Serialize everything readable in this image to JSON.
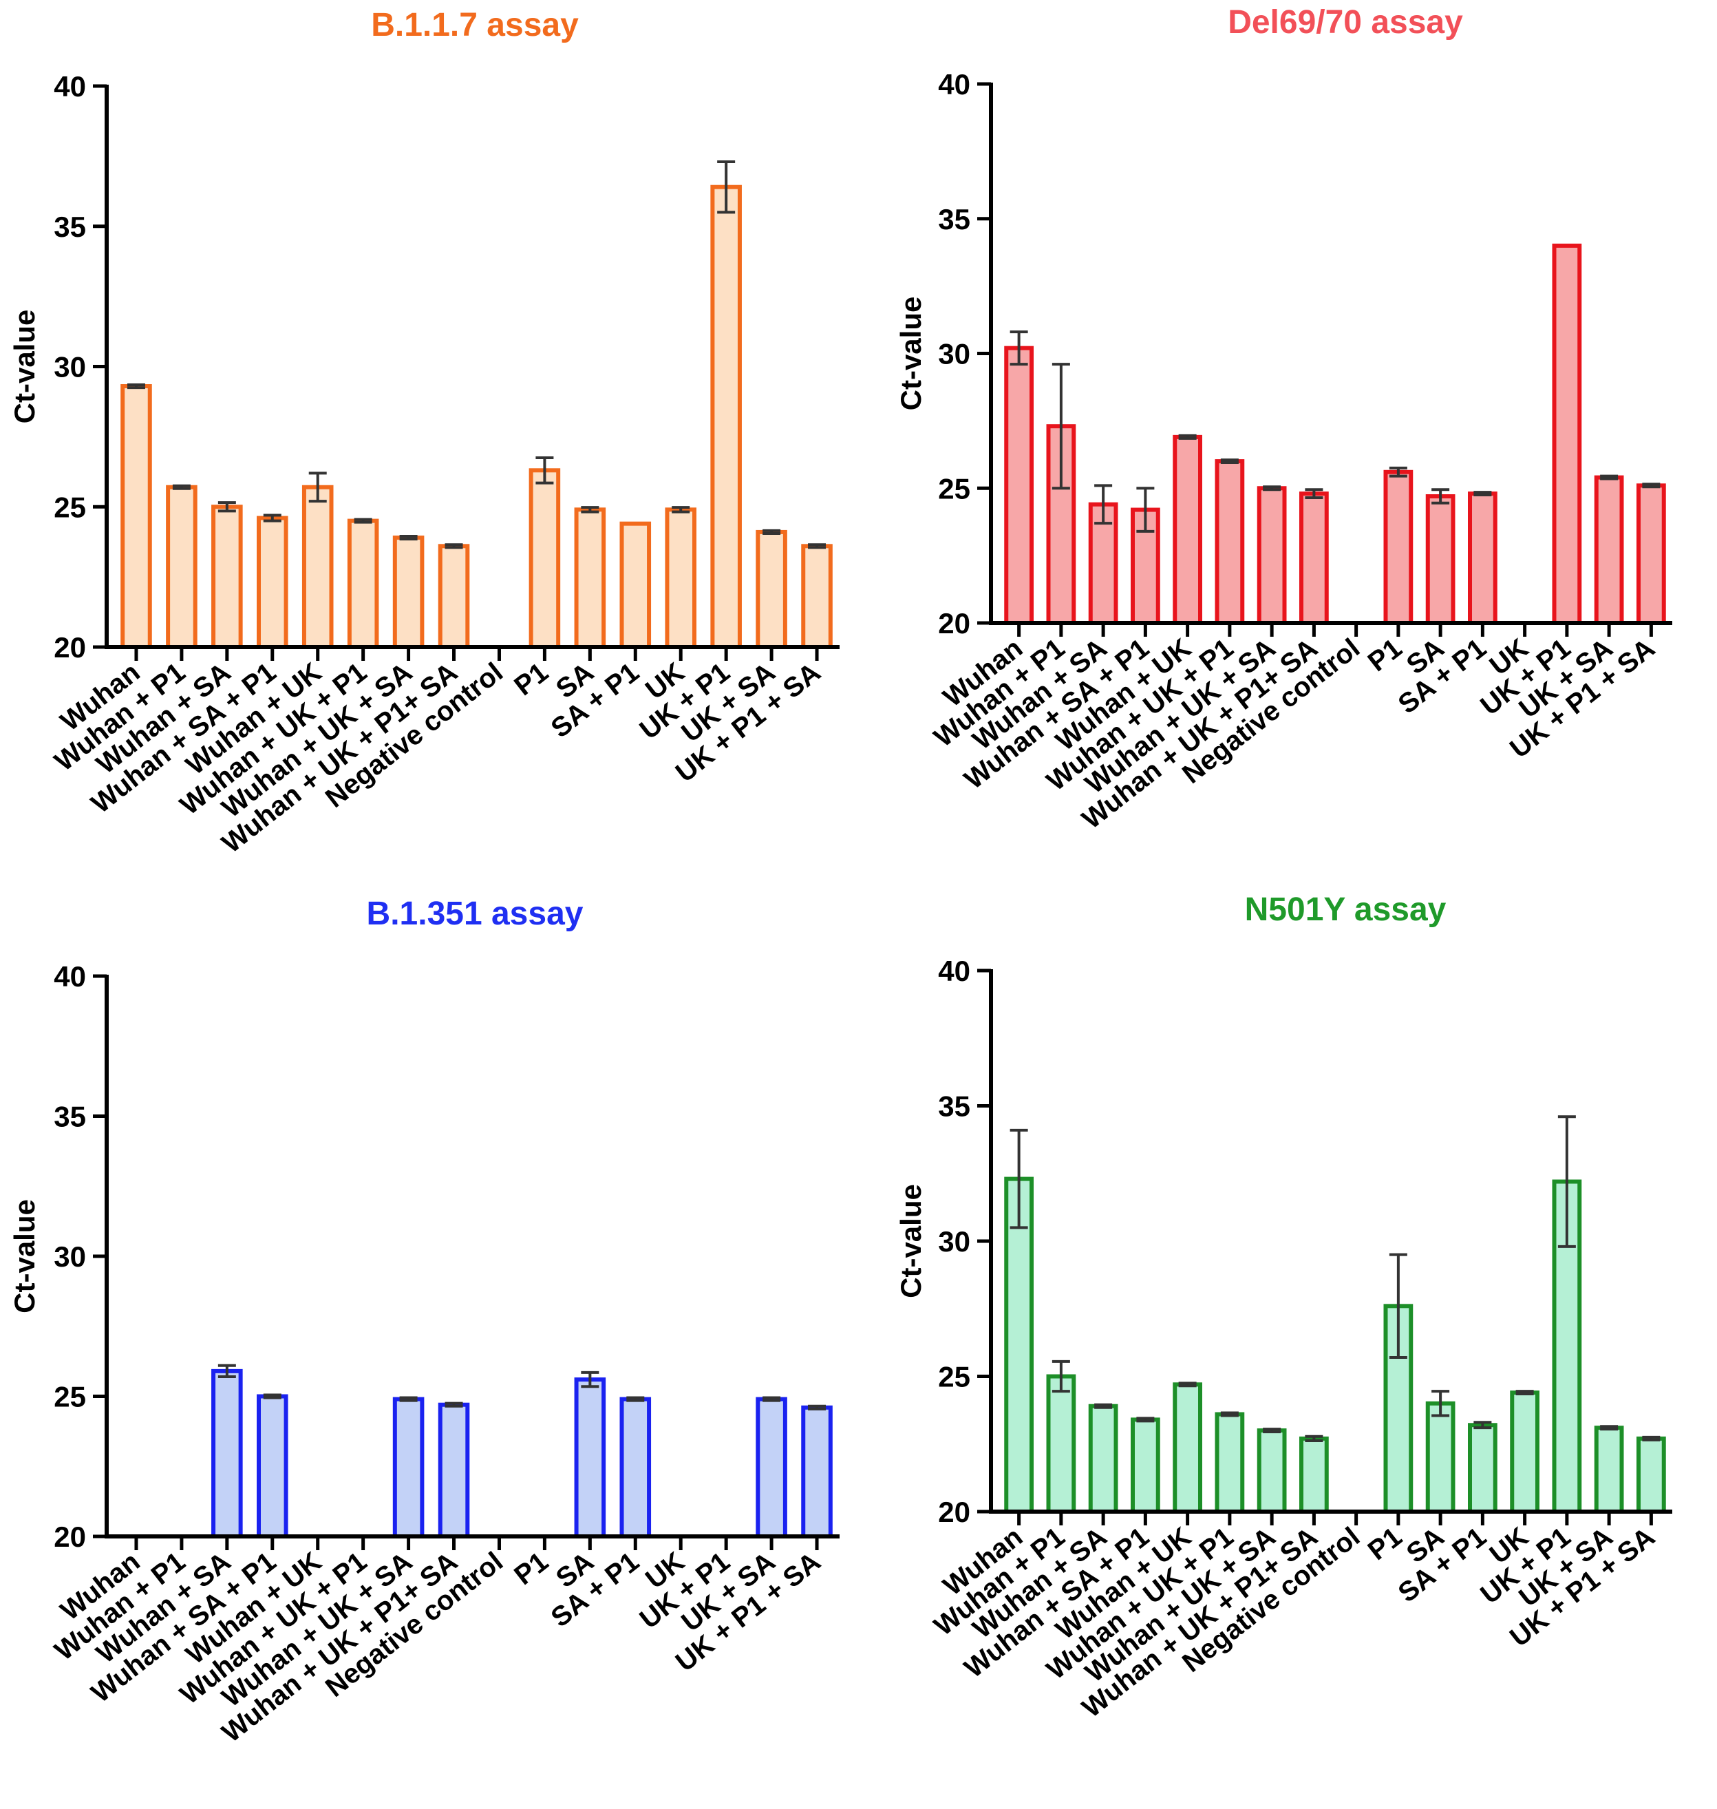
{
  "chart_data": [
    {
      "type": "bar",
      "title": "B.1.1.7 assay",
      "title_color": "#f26b1d",
      "bar_stroke": "#f26b1d",
      "bar_fill": "#fde0c5",
      "xlabel": "",
      "ylabel": "Ct-value",
      "ylim": [
        20,
        40
      ],
      "yticks": [
        "20",
        "25",
        "30",
        "35",
        "40"
      ],
      "grid": false,
      "categories": [
        "Wuhan",
        "Wuhan + P1",
        "Wuhan + SA",
        "Wuhan + SA + P1",
        "Wuhan + UK",
        "Wuhan + UK + P1",
        "Wuhan + UK + SA",
        "Wuhan + UK + P1+ SA",
        "Negative control",
        "P1",
        "SA",
        "SA + P1",
        "UK",
        "UK + P1",
        "UK + SA",
        "UK + P1 + SA"
      ],
      "values": [
        29.3,
        25.7,
        25.0,
        24.6,
        25.7,
        24.5,
        23.9,
        23.6,
        null,
        26.3,
        24.9,
        24.4,
        24.9,
        36.4,
        24.1,
        23.6
      ],
      "errors": [
        0.05,
        0.05,
        0.15,
        0.1,
        0.5,
        0.05,
        0.05,
        0.05,
        null,
        0.45,
        0.08,
        0,
        0.08,
        0.9,
        0.05,
        0.05
      ]
    },
    {
      "type": "bar",
      "title": "Del69/70 assay",
      "title_color": "#f25058",
      "bar_stroke": "#e8141c",
      "bar_fill": "#f7a7a8",
      "xlabel": "",
      "ylabel": "Ct-value",
      "ylim": [
        20,
        40
      ],
      "yticks": [
        "20",
        "25",
        "30",
        "35",
        "40"
      ],
      "grid": false,
      "categories": [
        "Wuhan",
        "Wuhan + P1",
        "Wuhan + SA",
        "Wuhan + SA + P1",
        "Wuhan + UK",
        "Wuhan + UK + P1",
        "Wuhan + UK + SA",
        "Wuhan + UK + P1+ SA",
        "Negative control",
        "P1",
        "SA",
        "SA + P1",
        "UK",
        "UK + P1",
        "UK + SA",
        "UK + P1 + SA"
      ],
      "values": [
        30.2,
        27.3,
        24.4,
        24.2,
        26.9,
        26.0,
        25.0,
        24.8,
        null,
        25.6,
        24.7,
        24.8,
        null,
        34.0,
        25.4,
        25.1
      ],
      "errors": [
        0.6,
        2.3,
        0.7,
        0.8,
        0.05,
        0.05,
        0.05,
        0.15,
        null,
        0.15,
        0.25,
        0.05,
        null,
        0,
        0.05,
        0.05
      ]
    },
    {
      "type": "bar",
      "title": "B.1.351 assay",
      "title_color": "#1f2ff2",
      "bar_stroke": "#1a22f0",
      "bar_fill": "#c3d2f7",
      "xlabel": "",
      "ylabel": "Ct-value",
      "ylim": [
        20,
        40
      ],
      "yticks": [
        "20",
        "25",
        "30",
        "35",
        "40"
      ],
      "grid": false,
      "categories": [
        "Wuhan",
        "Wuhan + P1",
        "Wuhan + SA",
        "Wuhan + SA + P1",
        "Wuhan + UK",
        "Wuhan + UK + P1",
        "Wuhan + UK + SA",
        "Wuhan + UK + P1+ SA",
        "Negative control",
        "P1",
        "SA",
        "SA + P1",
        "UK",
        "UK + P1",
        "UK + SA",
        "UK + P1 + SA"
      ],
      "values": [
        null,
        null,
        25.9,
        25.0,
        null,
        null,
        24.9,
        24.7,
        null,
        null,
        25.6,
        24.9,
        null,
        null,
        24.9,
        24.6
      ],
      "errors": [
        null,
        null,
        0.2,
        0.05,
        null,
        null,
        0.05,
        0.05,
        null,
        null,
        0.25,
        0.05,
        null,
        null,
        0.05,
        0.05
      ]
    },
    {
      "type": "bar",
      "title": "N501Y assay",
      "title_color": "#1f9a2a",
      "bar_stroke": "#1d8f28",
      "bar_fill": "#b5f0d5",
      "xlabel": "",
      "ylabel": "Ct-value",
      "ylim": [
        20,
        40
      ],
      "yticks": [
        "20",
        "25",
        "30",
        "35",
        "40"
      ],
      "grid": false,
      "categories": [
        "Wuhan",
        "Wuhan + P1",
        "Wuhan + SA",
        "Wuhan + SA + P1",
        "Wuhan + UK",
        "Wuhan + UK + P1",
        "Wuhan + UK + SA",
        "Wuhan + UK + P1+ SA",
        "Negative control",
        "P1",
        "SA",
        "SA + P1",
        "UK",
        "UK + P1",
        "UK + SA",
        "UK + P1 + SA"
      ],
      "values": [
        32.3,
        25.0,
        23.9,
        23.4,
        24.7,
        23.6,
        23.0,
        22.7,
        null,
        27.6,
        24.0,
        23.2,
        24.4,
        32.2,
        23.1,
        22.7
      ],
      "errors": [
        1.8,
        0.55,
        0.05,
        0.05,
        0.05,
        0.05,
        0.05,
        0.08,
        null,
        1.9,
        0.45,
        0.1,
        0.05,
        2.4,
        0.05,
        0.05
      ]
    }
  ]
}
